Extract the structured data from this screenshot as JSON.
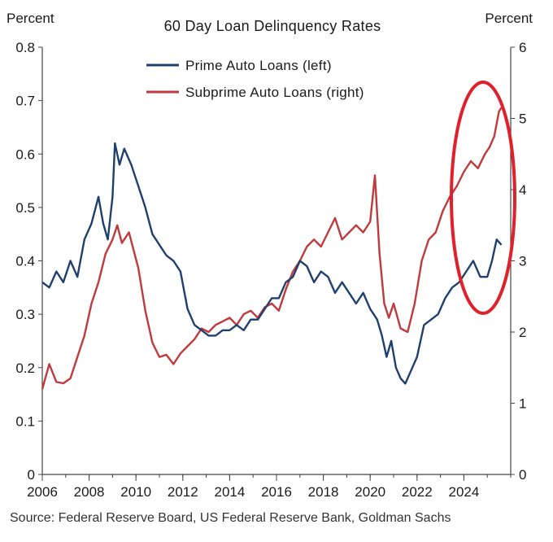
{
  "chart_data": {
    "type": "line",
    "title": "60 Day Loan Delinquency Rates",
    "left_axis_label": "Percent",
    "right_axis_label": "Percent",
    "x_ticks": [
      "2006",
      "2008",
      "2010",
      "2012",
      "2014",
      "2016",
      "2018",
      "2020",
      "2022",
      "2024"
    ],
    "x_range": [
      2006,
      2026
    ],
    "left_ylim": [
      0,
      0.8
    ],
    "left_ticks": [
      "0",
      "0.1",
      "0.2",
      "0.3",
      "0.4",
      "0.5",
      "0.6",
      "0.7",
      "0.8"
    ],
    "right_ylim": [
      0,
      6
    ],
    "right_ticks": [
      "0",
      "1",
      "2",
      "3",
      "4",
      "5",
      "6"
    ],
    "grid": false,
    "legend_position": "top-center",
    "series": [
      {
        "name": "Prime Auto Loans (left)",
        "axis": "left",
        "color": "#1f3f6e",
        "points": [
          [
            2006.0,
            0.36
          ],
          [
            2006.3,
            0.35
          ],
          [
            2006.6,
            0.38
          ],
          [
            2006.9,
            0.36
          ],
          [
            2007.2,
            0.4
          ],
          [
            2007.5,
            0.37
          ],
          [
            2007.8,
            0.44
          ],
          [
            2008.1,
            0.47
          ],
          [
            2008.4,
            0.52
          ],
          [
            2008.6,
            0.47
          ],
          [
            2008.8,
            0.44
          ],
          [
            2009.0,
            0.52
          ],
          [
            2009.1,
            0.62
          ],
          [
            2009.3,
            0.58
          ],
          [
            2009.5,
            0.61
          ],
          [
            2009.8,
            0.58
          ],
          [
            2010.1,
            0.54
          ],
          [
            2010.4,
            0.5
          ],
          [
            2010.7,
            0.45
          ],
          [
            2011.0,
            0.43
          ],
          [
            2011.3,
            0.41
          ],
          [
            2011.6,
            0.4
          ],
          [
            2011.9,
            0.38
          ],
          [
            2012.2,
            0.31
          ],
          [
            2012.5,
            0.28
          ],
          [
            2012.8,
            0.27
          ],
          [
            2013.1,
            0.26
          ],
          [
            2013.4,
            0.26
          ],
          [
            2013.7,
            0.27
          ],
          [
            2014.0,
            0.27
          ],
          [
            2014.3,
            0.28
          ],
          [
            2014.6,
            0.27
          ],
          [
            2014.9,
            0.29
          ],
          [
            2015.2,
            0.29
          ],
          [
            2015.5,
            0.31
          ],
          [
            2015.8,
            0.33
          ],
          [
            2016.1,
            0.33
          ],
          [
            2016.4,
            0.36
          ],
          [
            2016.7,
            0.37
          ],
          [
            2017.0,
            0.4
          ],
          [
            2017.3,
            0.39
          ],
          [
            2017.6,
            0.36
          ],
          [
            2017.9,
            0.38
          ],
          [
            2018.2,
            0.37
          ],
          [
            2018.5,
            0.34
          ],
          [
            2018.8,
            0.36
          ],
          [
            2019.1,
            0.34
          ],
          [
            2019.4,
            0.32
          ],
          [
            2019.7,
            0.34
          ],
          [
            2020.0,
            0.31
          ],
          [
            2020.3,
            0.29
          ],
          [
            2020.5,
            0.26
          ],
          [
            2020.7,
            0.22
          ],
          [
            2020.9,
            0.25
          ],
          [
            2021.1,
            0.2
          ],
          [
            2021.3,
            0.18
          ],
          [
            2021.5,
            0.17
          ],
          [
            2021.8,
            0.2
          ],
          [
            2022.0,
            0.22
          ],
          [
            2022.3,
            0.28
          ],
          [
            2022.6,
            0.29
          ],
          [
            2022.9,
            0.3
          ],
          [
            2023.2,
            0.33
          ],
          [
            2023.5,
            0.35
          ],
          [
            2023.8,
            0.36
          ],
          [
            2024.1,
            0.38
          ],
          [
            2024.4,
            0.4
          ],
          [
            2024.7,
            0.37
          ],
          [
            2025.0,
            0.37
          ],
          [
            2025.2,
            0.4
          ],
          [
            2025.4,
            0.44
          ],
          [
            2025.6,
            0.43
          ]
        ]
      },
      {
        "name": "Subprime Auto Loans (right)",
        "axis": "right",
        "color": "#c0393c",
        "points": [
          [
            2006.0,
            1.2
          ],
          [
            2006.3,
            1.55
          ],
          [
            2006.6,
            1.3
          ],
          [
            2006.9,
            1.28
          ],
          [
            2007.2,
            1.35
          ],
          [
            2007.5,
            1.65
          ],
          [
            2007.8,
            1.95
          ],
          [
            2008.1,
            2.4
          ],
          [
            2008.4,
            2.7
          ],
          [
            2008.7,
            3.1
          ],
          [
            2009.0,
            3.3
          ],
          [
            2009.2,
            3.5
          ],
          [
            2009.4,
            3.25
          ],
          [
            2009.7,
            3.4
          ],
          [
            2009.9,
            3.15
          ],
          [
            2010.1,
            2.9
          ],
          [
            2010.4,
            2.3
          ],
          [
            2010.7,
            1.85
          ],
          [
            2011.0,
            1.65
          ],
          [
            2011.3,
            1.68
          ],
          [
            2011.6,
            1.55
          ],
          [
            2011.9,
            1.7
          ],
          [
            2012.2,
            1.8
          ],
          [
            2012.5,
            1.9
          ],
          [
            2012.8,
            2.05
          ],
          [
            2013.1,
            2.0
          ],
          [
            2013.4,
            2.1
          ],
          [
            2013.7,
            2.15
          ],
          [
            2014.0,
            2.2
          ],
          [
            2014.3,
            2.1
          ],
          [
            2014.6,
            2.25
          ],
          [
            2014.9,
            2.3
          ],
          [
            2015.2,
            2.2
          ],
          [
            2015.5,
            2.35
          ],
          [
            2015.8,
            2.4
          ],
          [
            2016.1,
            2.3
          ],
          [
            2016.4,
            2.6
          ],
          [
            2016.7,
            2.85
          ],
          [
            2017.0,
            3.0
          ],
          [
            2017.3,
            3.2
          ],
          [
            2017.6,
            3.3
          ],
          [
            2017.9,
            3.2
          ],
          [
            2018.2,
            3.4
          ],
          [
            2018.5,
            3.6
          ],
          [
            2018.8,
            3.3
          ],
          [
            2019.1,
            3.4
          ],
          [
            2019.4,
            3.5
          ],
          [
            2019.7,
            3.4
          ],
          [
            2020.0,
            3.55
          ],
          [
            2020.2,
            4.2
          ],
          [
            2020.4,
            3.1
          ],
          [
            2020.6,
            2.4
          ],
          [
            2020.8,
            2.2
          ],
          [
            2021.0,
            2.4
          ],
          [
            2021.3,
            2.05
          ],
          [
            2021.6,
            2.0
          ],
          [
            2021.9,
            2.4
          ],
          [
            2022.2,
            3.0
          ],
          [
            2022.5,
            3.3
          ],
          [
            2022.8,
            3.4
          ],
          [
            2023.1,
            3.7
          ],
          [
            2023.4,
            3.9
          ],
          [
            2023.7,
            4.05
          ],
          [
            2024.0,
            4.25
          ],
          [
            2024.3,
            4.4
          ],
          [
            2024.6,
            4.3
          ],
          [
            2024.9,
            4.5
          ],
          [
            2025.1,
            4.6
          ],
          [
            2025.3,
            4.75
          ],
          [
            2025.5,
            5.1
          ],
          [
            2025.6,
            5.15
          ]
        ]
      }
    ],
    "annotation": "red ellipse highlighting 2023-2025 rise"
  },
  "source": "Source: Federal Reserve Board, US Federal Reserve Bank, Goldman Sachs"
}
